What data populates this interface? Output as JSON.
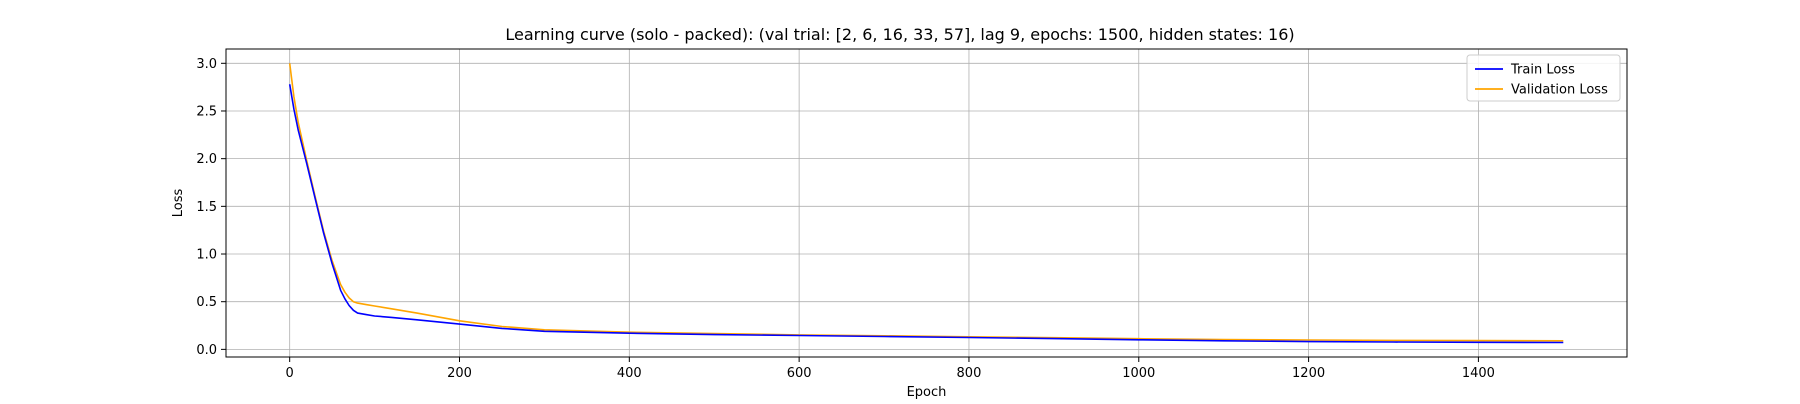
{
  "chart_data": {
    "type": "line",
    "title": "Learning curve (solo - packed): (val trial: [2, 6, 16, 33, 57], lag 9, epochs: 1500, hidden states: 16)",
    "xlabel": "Epoch",
    "ylabel": "Loss",
    "xlim": [
      -75,
      1575
    ],
    "ylim": [
      -0.08,
      3.15
    ],
    "xticks": [
      0,
      200,
      400,
      600,
      800,
      1000,
      1200,
      1400
    ],
    "xtick_labels": [
      "0",
      "200",
      "400",
      "600",
      "800",
      "1000",
      "1200",
      "1400"
    ],
    "yticks": [
      0.0,
      0.5,
      1.0,
      1.5,
      2.0,
      2.5,
      3.0
    ],
    "ytick_labels": [
      "0.0",
      "0.5",
      "1.0",
      "1.5",
      "2.0",
      "2.5",
      "3.0"
    ],
    "grid": true,
    "legend_position": "upper right",
    "series": [
      {
        "name": "Train Loss",
        "color": "#0000ff",
        "x": [
          0,
          5,
          10,
          20,
          30,
          40,
          50,
          60,
          65,
          70,
          75,
          80,
          90,
          100,
          120,
          150,
          200,
          250,
          300,
          400,
          500,
          600,
          700,
          800,
          900,
          1000,
          1100,
          1200,
          1300,
          1400,
          1500
        ],
        "y": [
          2.78,
          2.52,
          2.3,
          1.95,
          1.58,
          1.22,
          0.9,
          0.62,
          0.53,
          0.46,
          0.41,
          0.38,
          0.365,
          0.35,
          0.335,
          0.31,
          0.265,
          0.22,
          0.19,
          0.17,
          0.155,
          0.145,
          0.135,
          0.125,
          0.113,
          0.1,
          0.09,
          0.082,
          0.077,
          0.074,
          0.072
        ]
      },
      {
        "name": "Validation Loss",
        "color": "#ffa500",
        "x": [
          0,
          5,
          10,
          20,
          30,
          40,
          50,
          60,
          65,
          70,
          75,
          80,
          90,
          100,
          120,
          150,
          200,
          250,
          300,
          400,
          500,
          600,
          700,
          800,
          900,
          1000,
          1100,
          1200,
          1300,
          1400,
          1500
        ],
        "y": [
          3.0,
          2.65,
          2.38,
          1.98,
          1.6,
          1.24,
          0.93,
          0.68,
          0.6,
          0.54,
          0.5,
          0.485,
          0.47,
          0.455,
          0.425,
          0.38,
          0.3,
          0.24,
          0.205,
          0.18,
          0.165,
          0.152,
          0.142,
          0.132,
          0.122,
          0.112,
          0.104,
          0.098,
          0.094,
          0.092,
          0.09
        ]
      }
    ]
  }
}
